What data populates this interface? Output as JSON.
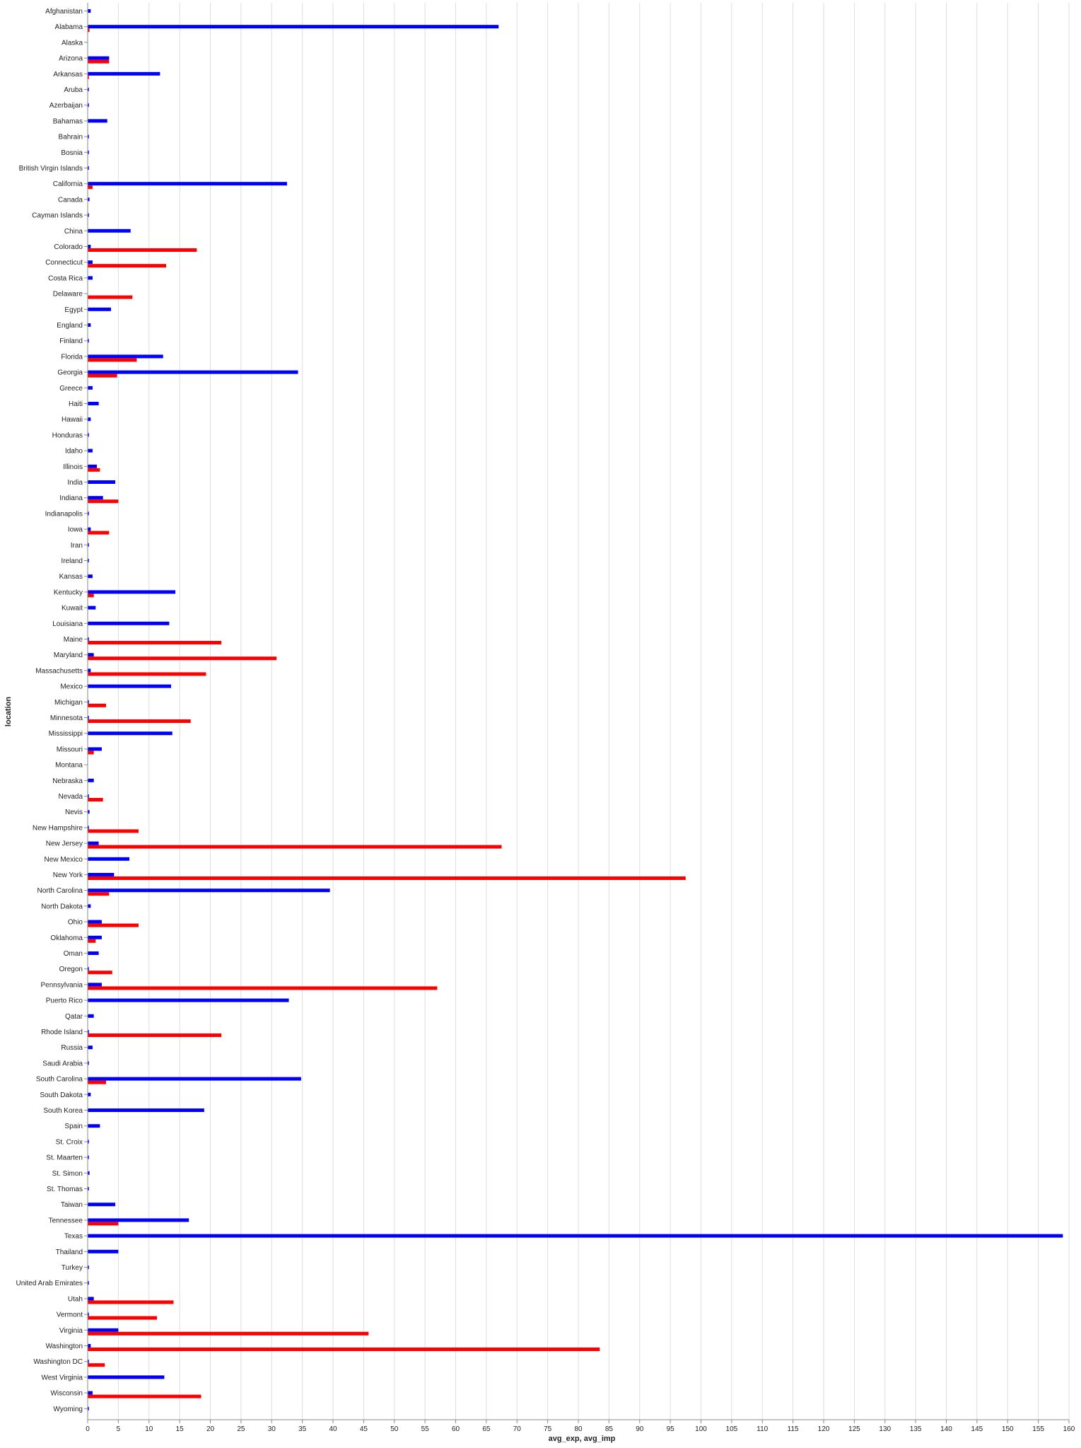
{
  "chart_data": {
    "type": "bar",
    "orientation": "horizontal",
    "xlabel": "avg_exp, avg_imp",
    "ylabel": "location",
    "xlim": [
      0,
      160
    ],
    "xticks": [
      0,
      5,
      10,
      15,
      20,
      25,
      30,
      35,
      40,
      45,
      50,
      55,
      60,
      65,
      70,
      75,
      80,
      85,
      90,
      95,
      100,
      105,
      110,
      115,
      120,
      125,
      130,
      135,
      140,
      145,
      150,
      155,
      160
    ],
    "grid": "vertical",
    "legend": "none",
    "series_colors": [
      "#0000ff",
      "#ff0000"
    ],
    "categories": [
      "Afghanistan",
      "Alabama",
      "Alaska",
      "Arizona",
      "Arkansas",
      "Aruba",
      "Azerbaijan",
      "Bahamas",
      "Bahrain",
      "Bosnia",
      "British Virgin Islands",
      "California",
      "Canada",
      "Cayman Islands",
      "China",
      "Colorado",
      "Connecticut",
      "Costa Rica",
      "Delaware",
      "Egypt",
      "England",
      "Finland",
      "Florida",
      "Georgia",
      "Greece",
      "Haiti",
      "Hawaii",
      "Honduras",
      "Idaho",
      "Illinois",
      "India",
      "Indiana",
      "Indianapolis",
      "Iowa",
      "Iran",
      "Ireland",
      "Kansas",
      "Kentucky",
      "Kuwait",
      "Louisiana",
      "Maine",
      "Maryland",
      "Massachusetts",
      "Mexico",
      "Michigan",
      "Minnesota",
      "Mississippi",
      "Missouri",
      "Montana",
      "Nebraska",
      "Nevada",
      "Nevis",
      "New Hampshire",
      "New Jersey",
      "New Mexico",
      "New York",
      "North Carolina",
      "North Dakota",
      "Ohio",
      "Oklahoma",
      "Oman",
      "Oregon",
      "Pennsylvania",
      "Puerto Rico",
      "Qatar",
      "Rhode Island",
      "Russia",
      "Saudi Arabia",
      "South Carolina",
      "South Dakota",
      "South Korea",
      "Spain",
      "St. Croix",
      "St. Maarten",
      "St. Simon",
      "St. Thomas",
      "Taiwan",
      "Tennessee",
      "Texas",
      "Thailand",
      "Turkey",
      "United Arab Emirates",
      "Utah",
      "Vermont",
      "Virginia",
      "Washington",
      "Washington DC",
      "West Virginia",
      "Wisconsin",
      "Wyoming"
    ],
    "series": [
      {
        "values": [
          0.5,
          67,
          0,
          3.5,
          11.8,
          0.2,
          0.2,
          3.2,
          0.2,
          0.2,
          0.2,
          32.5,
          0.3,
          0.2,
          7,
          0.5,
          0.8,
          0.8,
          0,
          3.8,
          0.5,
          0.2,
          12.3,
          34.3,
          0.8,
          1.8,
          0.5,
          0.2,
          0.8,
          1.5,
          4.5,
          2.5,
          0.2,
          0.5,
          0.2,
          0.2,
          0.8,
          14.3,
          1.3,
          13.3,
          0.2,
          1,
          0.5,
          13.6,
          0.2,
          0.2,
          13.8,
          2.3,
          0,
          1,
          0.2,
          0.3,
          0.2,
          1.8,
          6.8,
          4.3,
          39.5,
          0.5,
          2.3,
          2.3,
          1.8,
          0.2,
          2.3,
          32.8,
          1,
          0.2,
          0.8,
          0.2,
          34.8,
          0.5,
          19,
          2,
          0.2,
          0.2,
          0.3,
          0.2,
          4.5,
          16.5,
          159,
          5,
          0.2,
          0.2,
          1,
          0.2,
          5,
          0.5,
          0.2,
          12.5,
          0.8,
          0.2
        ]
      },
      {
        "values": [
          0,
          0.3,
          0,
          3.5,
          0.2,
          0,
          0,
          0,
          0,
          0,
          0,
          0.8,
          0,
          0,
          0,
          17.8,
          12.8,
          0,
          7.3,
          0,
          0,
          0,
          8,
          4.8,
          0,
          0,
          0,
          0,
          0,
          2,
          0,
          5,
          0,
          3.5,
          0,
          0,
          0,
          1,
          0,
          0,
          21.8,
          30.8,
          19.3,
          0,
          3,
          16.8,
          0,
          1,
          0,
          0,
          2.5,
          0,
          8.3,
          67.5,
          0,
          97.5,
          3.5,
          0,
          8.3,
          1.3,
          0,
          4,
          57,
          0,
          0,
          21.8,
          0,
          0,
          3,
          0,
          0,
          0,
          0,
          0,
          0,
          0,
          0,
          5,
          0,
          0,
          0,
          0,
          14,
          11.3,
          45.8,
          83.5,
          2.8,
          0,
          18.5,
          0
        ]
      }
    ]
  }
}
